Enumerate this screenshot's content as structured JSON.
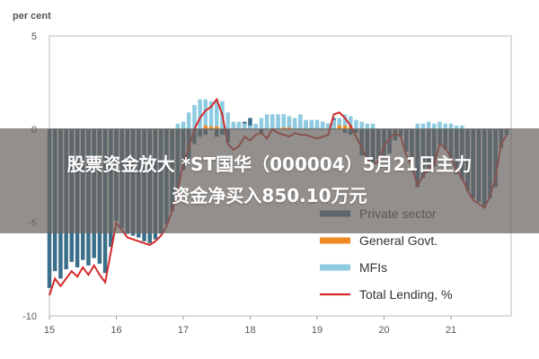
{
  "headline": {
    "line1": "股票资金放大 *ST国华（000004）5月21日主力",
    "line2": "资金净买入850.10万元"
  },
  "chart_data": {
    "type": "bar",
    "unit_label": "per cent",
    "ylim": [
      -10,
      5
    ],
    "y_ticks": [
      {
        "value": 5,
        "label": "5"
      },
      {
        "value": 0,
        "label": "0"
      },
      {
        "value": -5,
        "label": "-5"
      },
      {
        "value": -10,
        "label": "-10"
      }
    ],
    "x_range": [
      15.0,
      21.9
    ],
    "x_ticks": [
      {
        "value": 15,
        "label": "15"
      },
      {
        "value": 16,
        "label": "16"
      },
      {
        "value": 17,
        "label": "17"
      },
      {
        "value": 18,
        "label": "18"
      },
      {
        "value": 19,
        "label": "19"
      },
      {
        "value": 20,
        "label": "20"
      },
      {
        "value": 21,
        "label": "21"
      }
    ],
    "legend": {
      "placement": "bottom-right",
      "entries": [
        {
          "name": "Private sector",
          "color": "#3a6e8a",
          "kind": "bar"
        },
        {
          "name": "General Govt.",
          "color": "#f08a24",
          "kind": "bar"
        },
        {
          "name": "MFIs",
          "color": "#8ecbe0",
          "kind": "bar"
        },
        {
          "name": "Total Lending, %",
          "color": "#d42a2a",
          "kind": "line"
        }
      ]
    },
    "series": [
      {
        "name": "Private sector",
        "color": "#3a6e8a",
        "x": [
          15.0,
          15.083,
          15.167,
          15.25,
          15.333,
          15.417,
          15.5,
          15.583,
          15.667,
          15.75,
          15.833,
          15.917,
          16.0,
          16.083,
          16.167,
          16.25,
          16.333,
          16.417,
          16.5,
          16.583,
          16.667,
          16.75,
          16.833,
          16.917,
          17.0,
          17.083,
          17.167,
          17.25,
          17.333,
          17.417,
          17.5,
          17.583,
          17.667,
          17.75,
          17.833,
          17.917,
          18.0,
          18.083,
          18.167,
          18.25,
          18.333,
          18.417,
          18.5,
          18.583,
          18.667,
          18.75,
          18.833,
          18.917,
          19.0,
          19.083,
          19.167,
          19.25,
          19.333,
          19.417,
          19.5,
          19.583,
          19.667,
          19.75,
          19.833,
          19.917,
          20.0,
          20.083,
          20.167,
          20.25,
          20.333,
          20.417,
          20.5,
          20.583,
          20.667,
          20.75,
          20.833,
          20.917,
          21.0,
          21.083,
          21.167,
          21.25,
          21.333,
          21.417,
          21.5,
          21.583,
          21.667,
          21.75,
          21.833
        ],
        "values": [
          -8.5,
          -7.6,
          -8.0,
          -7.5,
          -7.1,
          -7.4,
          -7.0,
          -7.3,
          -6.9,
          -7.2,
          -7.7,
          -6.3,
          -4.9,
          -5.3,
          -5.6,
          -5.7,
          -5.8,
          -6.0,
          -6.1,
          -5.9,
          -5.6,
          -5.1,
          -4.4,
          -3.4,
          -2.2,
          -1.6,
          -0.8,
          -0.4,
          -0.3,
          0.0,
          -0.4,
          -0.3,
          -0.7,
          0.2,
          0.3,
          0.4,
          0.6,
          0.2,
          -0.2,
          0.2,
          0.6,
          0.4,
          0.5,
          0.6,
          0.3,
          0.5,
          0.4,
          0.3,
          0.2,
          0.4,
          0.3,
          0.6,
          0.5,
          -0.2,
          -0.3,
          -0.2,
          -1.4,
          -1.7,
          -1.8,
          -1.6,
          -1.5,
          -1.3,
          -0.6,
          -0.4,
          -1.2,
          -1.8,
          -3.1,
          -2.6,
          -2.3,
          -2.0,
          -0.8,
          -1.1,
          -1.6,
          -2.4,
          -2.7,
          -3.3,
          -3.7,
          -3.9,
          -4.1,
          -3.7,
          -3.1,
          -1.0,
          -0.3
        ]
      },
      {
        "name": "General Govt.",
        "color": "#f08a24",
        "x": [
          17.333,
          17.417,
          17.5,
          18.5,
          18.583,
          19.333,
          19.417,
          19.5
        ],
        "values": [
          0.2,
          0.15,
          0.15,
          0.1,
          0.1,
          0.2,
          0.2,
          0.15
        ]
      },
      {
        "name": "MFIs",
        "color": "#8ecbe0",
        "x": [
          16.917,
          17.0,
          17.083,
          17.167,
          17.25,
          17.333,
          17.417,
          17.5,
          17.583,
          17.667,
          17.75,
          17.833,
          17.917,
          18.0,
          18.083,
          18.167,
          18.25,
          18.333,
          18.417,
          18.5,
          18.583,
          18.667,
          18.75,
          18.833,
          18.917,
          19.0,
          19.083,
          19.167,
          19.25,
          19.333,
          19.417,
          19.5,
          19.583,
          19.667,
          19.75,
          19.833,
          20.5,
          20.583,
          20.667,
          20.75,
          20.833,
          20.917,
          21.0,
          21.083,
          21.167
        ],
        "values": [
          0.3,
          0.4,
          0.9,
          1.3,
          1.6,
          1.6,
          1.5,
          1.6,
          1.5,
          0.9,
          0.4,
          0.4,
          0.3,
          0.2,
          0.3,
          0.6,
          0.8,
          0.8,
          0.8,
          0.8,
          0.7,
          0.6,
          0.8,
          0.5,
          0.5,
          0.5,
          0.4,
          0.3,
          0.5,
          0.6,
          0.8,
          0.7,
          0.5,
          0.4,
          0.3,
          0.3,
          0.3,
          0.3,
          0.4,
          0.3,
          0.4,
          0.3,
          0.3,
          0.2,
          0.2
        ]
      },
      {
        "name": "Total Lending, %",
        "color": "#d42a2a",
        "type": "line",
        "x": [
          15.0,
          15.083,
          15.167,
          15.25,
          15.333,
          15.417,
          15.5,
          15.583,
          15.667,
          15.75,
          15.833,
          15.917,
          16.0,
          16.083,
          16.167,
          16.25,
          16.333,
          16.417,
          16.5,
          16.583,
          16.667,
          16.75,
          16.833,
          16.917,
          17.0,
          17.083,
          17.167,
          17.25,
          17.333,
          17.417,
          17.5,
          17.583,
          17.667,
          17.75,
          17.833,
          17.917,
          18.0,
          18.083,
          18.167,
          18.25,
          18.333,
          18.417,
          18.5,
          18.583,
          18.667,
          18.75,
          18.833,
          18.917,
          19.0,
          19.083,
          19.167,
          19.25,
          19.333,
          19.417,
          19.5,
          19.583,
          19.667,
          19.75,
          19.833,
          19.917,
          20.0,
          20.083,
          20.167,
          20.25,
          20.333,
          20.417,
          20.5,
          20.583,
          20.667,
          20.75,
          20.833,
          20.917,
          21.0,
          21.083,
          21.167,
          21.25,
          21.333,
          21.417,
          21.5,
          21.583,
          21.667,
          21.75,
          21.833
        ],
        "values": [
          -8.9,
          -8.0,
          -8.4,
          -8.0,
          -7.6,
          -7.9,
          -7.4,
          -7.8,
          -7.3,
          -7.8,
          -8.2,
          -6.6,
          -5.0,
          -5.4,
          -5.8,
          -5.9,
          -6.0,
          -6.1,
          -6.2,
          -6.0,
          -5.7,
          -5.2,
          -4.4,
          -3.3,
          -1.8,
          -1.0,
          0.0,
          0.6,
          1.0,
          1.2,
          1.6,
          0.8,
          -0.8,
          -1.1,
          -0.9,
          -0.4,
          -0.6,
          -0.3,
          -0.2,
          -0.5,
          0.0,
          -0.2,
          -0.3,
          -0.4,
          -0.2,
          -0.3,
          -0.3,
          -0.4,
          -0.5,
          -0.4,
          -0.3,
          0.8,
          0.9,
          0.6,
          0.2,
          -0.4,
          -1.0,
          -1.6,
          -1.9,
          -1.7,
          -0.9,
          -0.5,
          -0.2,
          -0.4,
          -1.4,
          -2.0,
          -3.0,
          -2.5,
          -2.1,
          -1.9,
          -0.8,
          -1.0,
          -1.5,
          -2.2,
          -2.6,
          -3.3,
          -3.8,
          -4.0,
          -4.2,
          -3.6,
          -2.6,
          -0.8,
          -0.3
        ]
      }
    ]
  }
}
